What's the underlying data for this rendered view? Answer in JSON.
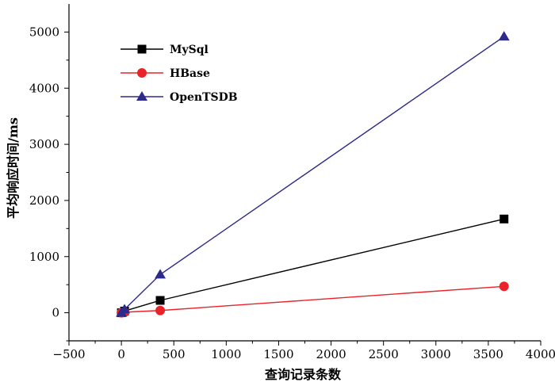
{
  "chart_data": {
    "type": "line",
    "xlabel": "查询记录条数",
    "ylabel": "平均响应时间/ms",
    "xlim": [
      -500,
      4000
    ],
    "ylim": [
      -500,
      5500
    ],
    "xticks": [
      -500,
      0,
      500,
      1000,
      1500,
      2000,
      2500,
      3000,
      3500,
      4000
    ],
    "xtick_labels": [
      "−500",
      "0",
      "500",
      "1000",
      "1500",
      "2000",
      "2500",
      "3000",
      "3500",
      "4000"
    ],
    "yticks": [
      0,
      1000,
      2000,
      3000,
      4000,
      5000
    ],
    "ytick_labels": [
      "0",
      "1000",
      "2000",
      "3000",
      "4000",
      "5000"
    ],
    "grid": false,
    "legend_position": "top-left",
    "series": [
      {
        "name": "MySql",
        "color": "#000000",
        "marker": "square",
        "x": [
          0,
          30,
          370,
          3650
        ],
        "y": [
          0,
          30,
          220,
          1670
        ]
      },
      {
        "name": "HBase",
        "color": "#e8232a",
        "marker": "circle",
        "x": [
          0,
          30,
          370,
          3650
        ],
        "y": [
          0,
          10,
          40,
          470
        ]
      },
      {
        "name": "OpenTSDB",
        "color": "#2e2a8c",
        "marker": "triangle",
        "x": [
          0,
          30,
          370,
          3650
        ],
        "y": [
          0,
          60,
          680,
          4920
        ]
      }
    ]
  }
}
